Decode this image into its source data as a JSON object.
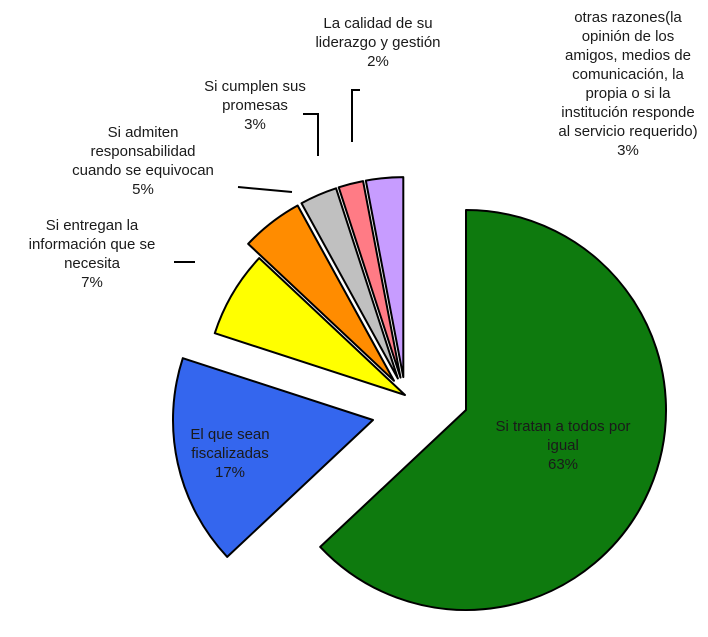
{
  "chart_data": {
    "type": "pie",
    "title": "",
    "legend": "none",
    "slices": [
      {
        "key": "igual",
        "label_lines": [
          "Si tratan a todos por",
          "igual"
        ],
        "value": 63,
        "value_label": "63%",
        "color": "#0e7a0e"
      },
      {
        "key": "fiscalizadas",
        "label_lines": [
          "El que sean",
          "fiscalizadas"
        ],
        "value": 17,
        "value_label": "17%",
        "color": "#3466ee"
      },
      {
        "key": "informacion",
        "label_lines": [
          "Si entregan la",
          "información que se",
          "necesita"
        ],
        "value": 7,
        "value_label": "7%",
        "color": "#ffff00"
      },
      {
        "key": "responsabilidad",
        "label_lines": [
          "Si admiten",
          "responsabilidad",
          "cuando se equivocan"
        ],
        "value": 5,
        "value_label": "5%",
        "color": "#ff8c00"
      },
      {
        "key": "promesas",
        "label_lines": [
          "Si cumplen sus",
          "promesas"
        ],
        "value": 3,
        "value_label": "3%",
        "color": "#c0c0c0"
      },
      {
        "key": "liderazgo",
        "label_lines": [
          "La calidad de su",
          "liderazgo y gestión"
        ],
        "value": 2,
        "value_label": "2%",
        "color": "#ff7b85"
      },
      {
        "key": "otras",
        "label_lines": [
          "otras razones(la",
          "opinión de los",
          "amigos, medios de",
          "comunicación, la",
          "propia o si la",
          "institución responde",
          "al servicio requerido)"
        ],
        "value": 3,
        "value_label": "3%",
        "color": "#c79cff"
      }
    ]
  }
}
